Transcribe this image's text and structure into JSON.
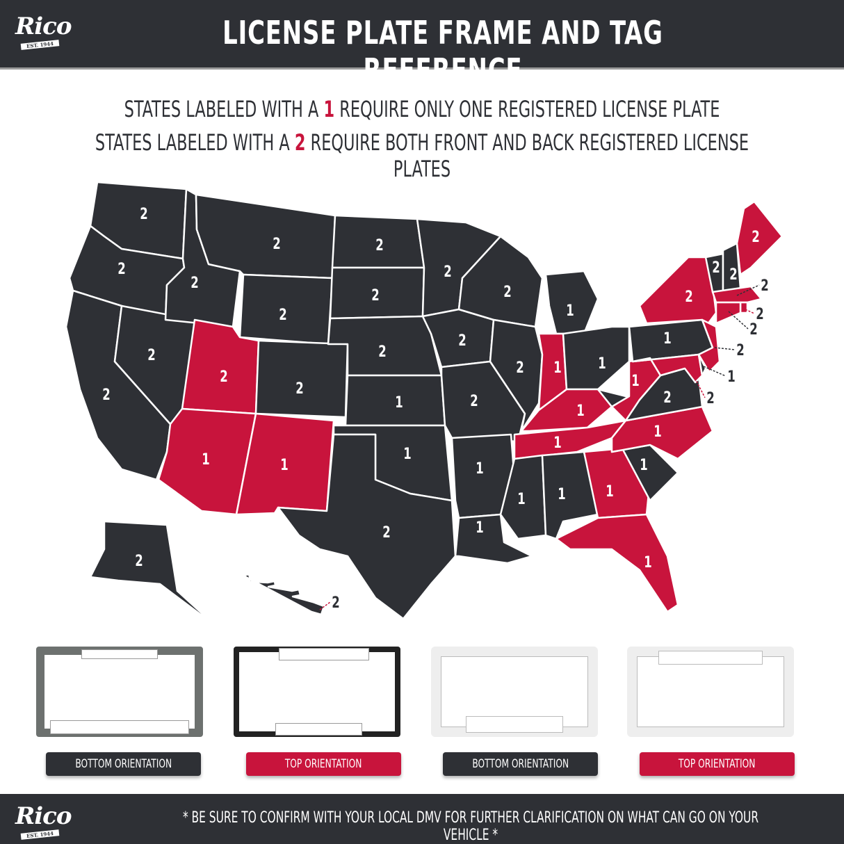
{
  "header": {
    "logo": "Rico",
    "logo_est": "EST. 1944",
    "title": "LICENSE PLATE FRAME AND TAG REFERENCE"
  },
  "legend": {
    "line1_pre": "STATES LABELED WITH A ",
    "line1_num": "1",
    "line1_post": " REQUIRE ONLY ONE REGISTERED LICENSE PLATE",
    "line2_pre": "STATES LABELED WITH A ",
    "line2_num": "2",
    "line2_post": " REQUIRE BOTH FRONT AND BACK REGISTERED LICENSE PLATES"
  },
  "colors": {
    "dark": "#2e3035",
    "red": "#c8143c",
    "one_plate_state_fill": "#2e3035 or #c8143c alternating"
  },
  "states": {
    "WA": 2,
    "OR": 2,
    "CA": 2,
    "NV": 2,
    "ID": 2,
    "MT": 2,
    "WY": 2,
    "UT": 2,
    "AZ": 1,
    "CO": 2,
    "NM": 1,
    "ND": 2,
    "SD": 2,
    "NE": 2,
    "KS": 1,
    "OK": 1,
    "TX": 2,
    "MN": 2,
    "IA": 2,
    "MO": 2,
    "AR": 1,
    "LA": 1,
    "WI": 2,
    "IL": 2,
    "MI": 1,
    "IN": 1,
    "OH": 1,
    "KY": 1,
    "TN": 1,
    "MS": 1,
    "AL": 1,
    "GA": 1,
    "FL": 1,
    "SC": 1,
    "NC": 1,
    "VA": 2,
    "WV": 1,
    "PA": 1,
    "NY": 2,
    "NJ": 2,
    "MD": 2,
    "DE": 1,
    "VT": 2,
    "NH": 2,
    "ME": 2,
    "MA": 2,
    "RI": 2,
    "CT": 2,
    "AK": 2,
    "HI": 2
  },
  "frames": [
    {
      "label": "BOTTOM ORIENTATION",
      "style": "dark"
    },
    {
      "label": "TOP ORIENTATION",
      "style": "red"
    },
    {
      "label": "BOTTOM ORIENTATION",
      "style": "dark"
    },
    {
      "label": "TOP ORIENTATION",
      "style": "red"
    }
  ],
  "footer": {
    "logo": "Rico",
    "logo_est": "EST. 1944",
    "disclaimer": "* BE SURE TO CONFIRM WITH YOUR LOCAL DMV FOR FURTHER CLARIFICATION ON WHAT CAN GO ON YOUR VEHICLE *"
  }
}
